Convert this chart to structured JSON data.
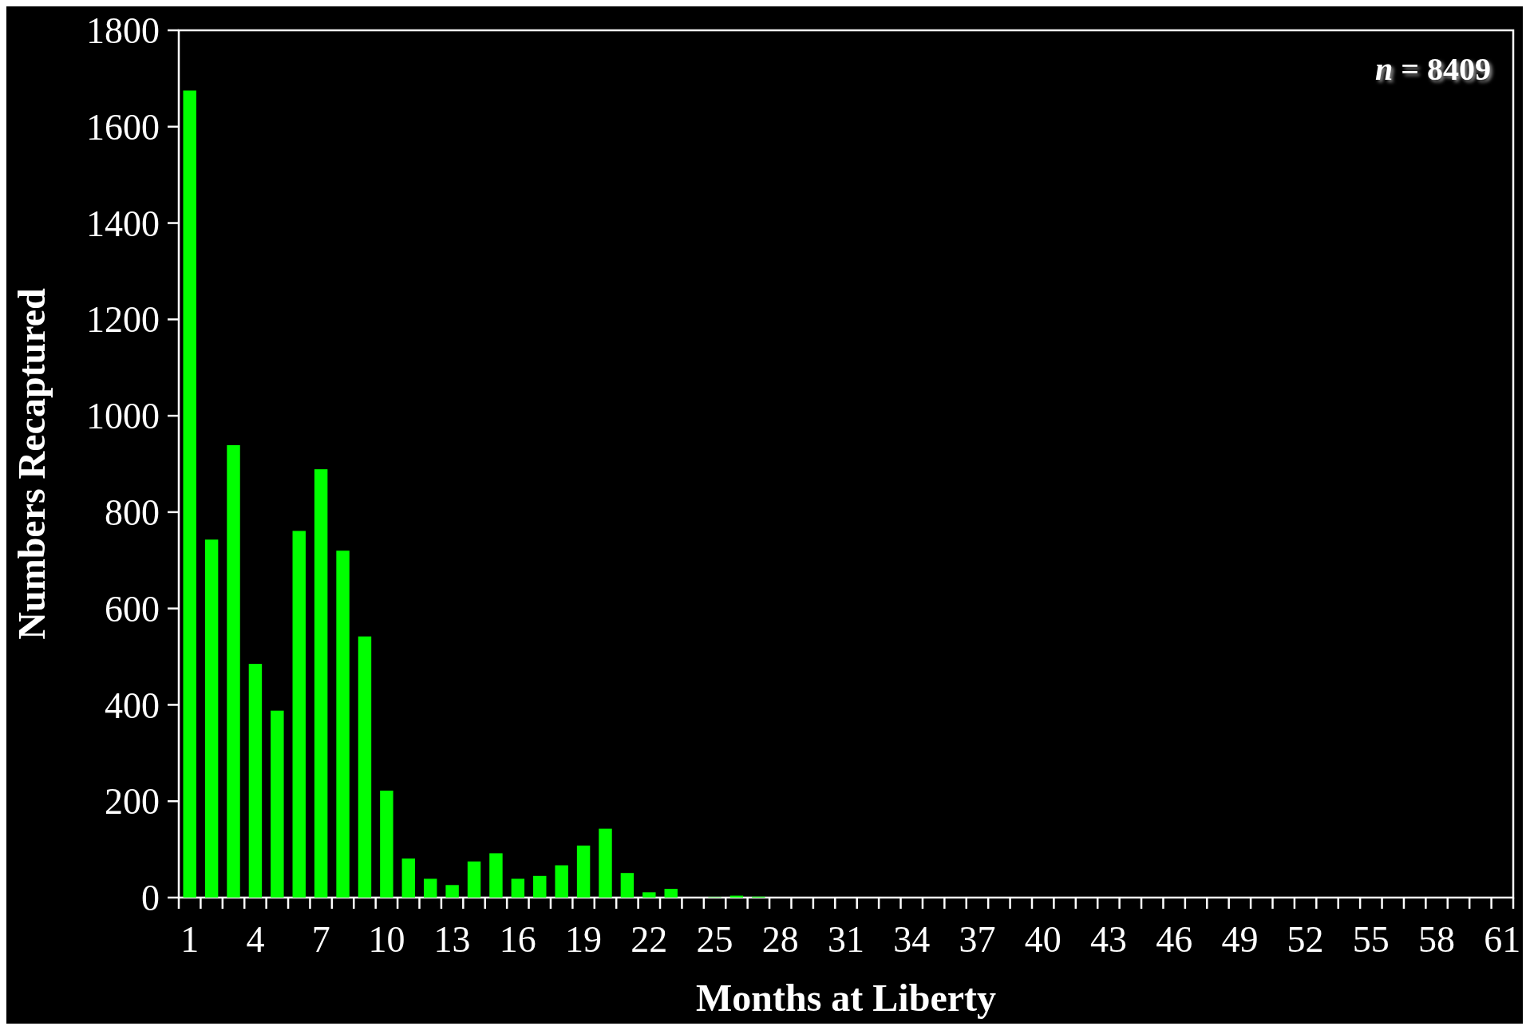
{
  "chart_data": {
    "type": "bar",
    "xlabel": "Months at Liberty",
    "ylabel": "Numbers Recaptured",
    "categories": [
      "1",
      null,
      null,
      "4",
      null,
      null,
      "7",
      null,
      null,
      "10",
      null,
      null,
      "13",
      null,
      null,
      "16",
      null,
      null,
      "19",
      null,
      null,
      "22",
      null,
      null,
      "25",
      null,
      null,
      "28",
      null,
      null,
      "31",
      null,
      null,
      "34",
      null,
      null,
      "37",
      null,
      null,
      "40",
      null,
      null,
      "43",
      null,
      null,
      "46",
      null,
      null,
      "49",
      null,
      null,
      "52",
      null,
      null,
      "55",
      null,
      null,
      "58",
      null,
      null,
      "61"
    ],
    "values": [
      1675,
      743,
      939,
      485,
      388,
      761,
      889,
      720,
      542,
      222,
      81,
      39,
      26,
      75,
      92,
      39,
      45,
      67,
      108,
      143,
      51,
      11,
      18,
      0,
      1,
      4,
      2,
      0,
      0,
      0,
      0,
      0,
      0,
      0,
      0,
      0,
      0,
      0,
      0,
      0,
      0,
      0,
      0,
      0,
      0,
      0,
      0,
      0,
      0,
      0,
      0,
      0,
      0,
      0,
      0,
      0,
      0,
      0,
      0,
      0,
      0
    ],
    "color": "#00ff00",
    "ylim": [
      0,
      1800
    ],
    "yticks": [
      0,
      200,
      400,
      600,
      800,
      1000,
      1200,
      1400,
      1600,
      1800
    ],
    "grid": false,
    "annotations": [
      "n = 8409"
    ]
  }
}
